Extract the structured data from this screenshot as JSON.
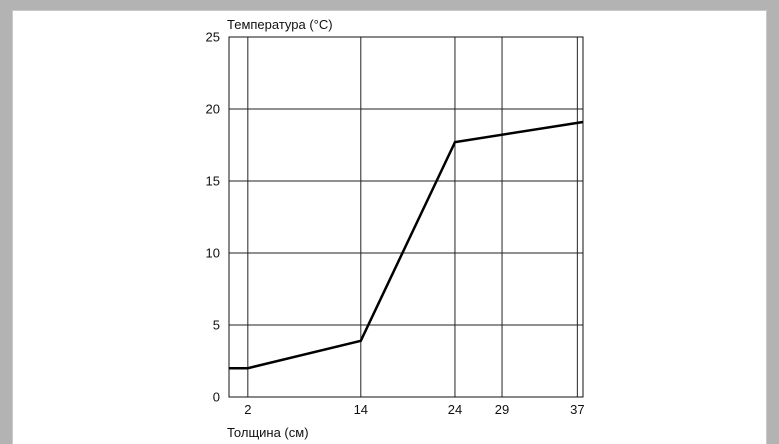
{
  "chart_data": {
    "type": "line",
    "title": "",
    "ylabel": "Температура (°C)",
    "xlabel": "Толщина (см)",
    "ylim": [
      0,
      25
    ],
    "xlim": [
      0,
      37.6
    ],
    "xticks": [
      2,
      14,
      24,
      29,
      37
    ],
    "yticks": [
      0,
      5,
      10,
      15,
      20,
      25
    ],
    "grid": true,
    "series": [
      {
        "points": [
          {
            "x": 0,
            "y": 2
          },
          {
            "x": 2,
            "y": 2
          },
          {
            "x": 14,
            "y": 3.9
          },
          {
            "x": 24,
            "y": 17.7
          },
          {
            "x": 37.6,
            "y": 19.1
          }
        ]
      }
    ]
  }
}
